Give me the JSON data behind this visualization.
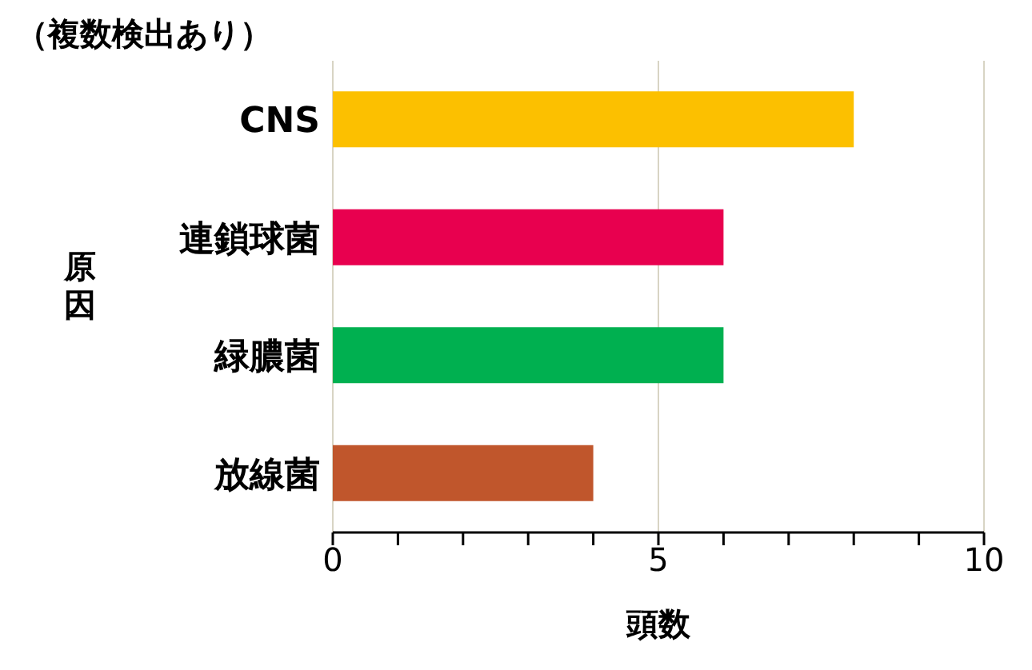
{
  "chart_data": {
    "type": "bar",
    "orientation": "horizontal",
    "title": "（複数検出あり）",
    "xlabel": "頭数",
    "ylabel": "原因",
    "categories": [
      "CNS",
      "連鎖球菌",
      "緑膿菌",
      "放線菌"
    ],
    "values": [
      8,
      6,
      6,
      4
    ],
    "colors": [
      "#fcc000",
      "#e8004f",
      "#00b050",
      "#c0562c"
    ],
    "xlim": [
      0,
      10
    ],
    "xticks": [
      0,
      {
        "value": 1,
        "label": null
      },
      {
        "value": 2,
        "label": null
      },
      {
        "value": 3,
        "label": null
      },
      {
        "value": 4,
        "label": null
      },
      5,
      {
        "value": 6,
        "label": null
      },
      {
        "value": 7,
        "label": null
      },
      {
        "value": 8,
        "label": null
      },
      {
        "value": 9,
        "label": null
      },
      10
    ],
    "grid": "x"
  }
}
